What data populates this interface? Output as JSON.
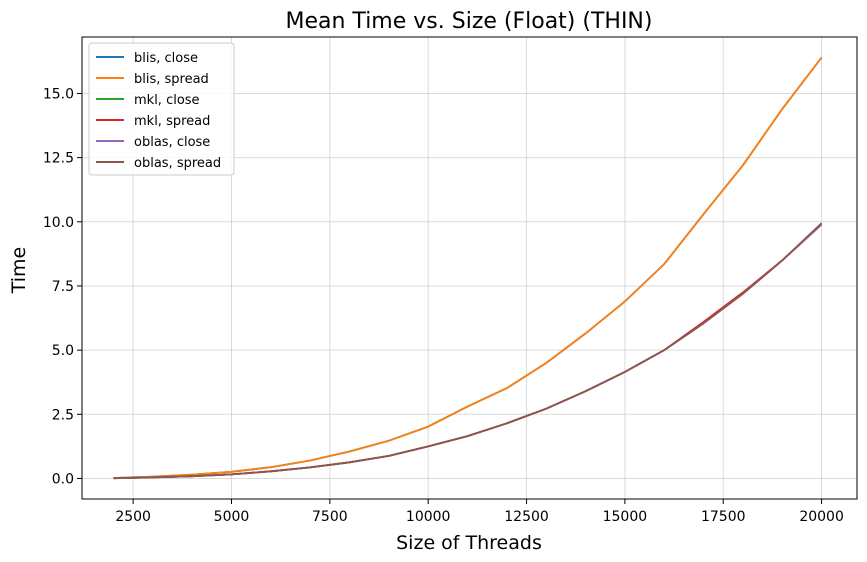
{
  "chart_data": {
    "type": "line",
    "title": "Mean Time vs. Size (Float) (THIN)",
    "xlabel": "Size of Threads",
    "ylabel": "Time",
    "xlim": [
      1200,
      20900
    ],
    "ylim": [
      -0.8,
      17.2
    ],
    "xticks": [
      2500,
      5000,
      7500,
      10000,
      12500,
      15000,
      17500,
      20000
    ],
    "xtick_labels": [
      "2500",
      "5000",
      "7500",
      "10000",
      "12500",
      "15000",
      "17500",
      "20000"
    ],
    "yticks": [
      0.0,
      2.5,
      5.0,
      7.5,
      10.0,
      12.5,
      15.0
    ],
    "ytick_labels": [
      "0.0",
      "2.5",
      "5.0",
      "7.5",
      "10.0",
      "12.5",
      "15.0"
    ],
    "grid": true,
    "legend_position": "top-left",
    "x": [
      2000,
      3000,
      4000,
      5000,
      6000,
      7000,
      8000,
      9000,
      10000,
      11000,
      12000,
      13000,
      14000,
      15000,
      16000,
      17000,
      18000,
      19000,
      20000
    ],
    "series": [
      {
        "name": "blis, close",
        "color": "#1f77b4",
        "values": [
          0.02,
          0.07,
          0.15,
          0.26,
          0.44,
          0.7,
          1.05,
          1.47,
          2.02,
          2.8,
          3.52,
          4.5,
          5.65,
          6.9,
          8.35,
          10.3,
          12.2,
          14.4,
          16.4
        ]
      },
      {
        "name": "blis, spread",
        "color": "#ff7f0e",
        "values": [
          0.02,
          0.07,
          0.15,
          0.26,
          0.44,
          0.7,
          1.05,
          1.47,
          2.02,
          2.8,
          3.52,
          4.5,
          5.65,
          6.9,
          8.35,
          10.3,
          12.2,
          14.4,
          16.4
        ]
      },
      {
        "name": "mkl, close",
        "color": "#2ca02c",
        "values": [
          0.01,
          0.04,
          0.09,
          0.16,
          0.28,
          0.43,
          0.63,
          0.88,
          1.25,
          1.65,
          2.15,
          2.72,
          3.4,
          4.15,
          5.0,
          6.05,
          7.2,
          8.5,
          9.9
        ]
      },
      {
        "name": "mkl, spread",
        "color": "#d62728",
        "values": [
          0.01,
          0.04,
          0.09,
          0.16,
          0.28,
          0.43,
          0.63,
          0.88,
          1.25,
          1.65,
          2.15,
          2.72,
          3.4,
          4.15,
          5.0,
          6.1,
          7.25,
          8.5,
          9.9
        ]
      },
      {
        "name": "oblas, close",
        "color": "#9467bd",
        "values": [
          0.01,
          0.04,
          0.09,
          0.16,
          0.28,
          0.43,
          0.63,
          0.88,
          1.25,
          1.65,
          2.15,
          2.72,
          3.4,
          4.15,
          5.0,
          6.05,
          7.2,
          8.5,
          9.9
        ]
      },
      {
        "name": "oblas, spread",
        "color": "#8c564b",
        "values": [
          0.01,
          0.04,
          0.09,
          0.16,
          0.28,
          0.43,
          0.63,
          0.88,
          1.25,
          1.65,
          2.15,
          2.72,
          3.4,
          4.15,
          5.0,
          6.05,
          7.2,
          8.5,
          9.95
        ]
      }
    ]
  }
}
